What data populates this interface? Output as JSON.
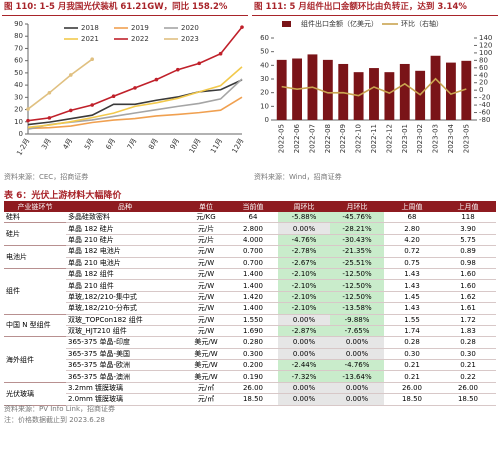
{
  "chart_data": [
    {
      "type": "line",
      "title": "图 110: 1-5 月我国光伏装机 61.21GW，同比 158.2%",
      "source": "资料来源：CEC，招商证券",
      "categories": [
        "1-2月",
        "3月",
        "4月",
        "5月",
        "6月",
        "7月",
        "8月",
        "9月",
        "10月",
        "11月",
        "12月"
      ],
      "series": [
        {
          "name": "2018",
          "color": "#3a3a3a",
          "values": [
            7.7,
            9.7,
            12.5,
            15.4,
            24.3,
            24.3,
            27.6,
            30.3,
            34.5,
            36.2,
            44.3
          ]
        },
        {
          "name": "2019",
          "color": "#f0a050",
          "values": [
            4.5,
            5.2,
            6.5,
            9.4,
            11.4,
            12.6,
            14.8,
            16.0,
            17.5,
            19.5,
            30.1
          ]
        },
        {
          "name": "2020",
          "color": "#a5a5a5",
          "values": [
            3.9,
            7.7,
            9.7,
            11.5,
            14.4,
            17.2,
            19.9,
            22.6,
            25.0,
            28.7,
            45.0
          ]
        },
        {
          "name": "2021",
          "color": "#f2c94c",
          "values": [
            5.5,
            7.3,
            10.1,
            13.4,
            17.1,
            22.6,
            25.5,
            29.2,
            34.5,
            39.6,
            54.9
          ]
        },
        {
          "name": "2022",
          "color": "#c0202a",
          "marker": true,
          "values": [
            10.9,
            13.2,
            19.3,
            23.7,
            30.9,
            37.7,
            44.5,
            52.6,
            57.8,
            65.7,
            87.4
          ]
        },
        {
          "name": "2023",
          "color": "#e0c080",
          "marker": true,
          "values": [
            20.4,
            33.7,
            48.3,
            61.2,
            null,
            null,
            null,
            null,
            null,
            null,
            null
          ]
        }
      ],
      "ylim": [
        0,
        90
      ],
      "yticks": [
        0,
        10,
        20,
        30,
        40,
        50,
        60,
        70,
        80,
        90
      ],
      "grid": false
    },
    {
      "type": "bar",
      "title": "图 111: 5 月组件出口金额环比由负转正，达到 3.14%",
      "source": "资料来源：Wind，招商证券",
      "categories": [
        "2022-05",
        "2022-06",
        "2022-07",
        "2022-08",
        "2022-09",
        "2022-10",
        "2022-11",
        "2022-12",
        "2023-01",
        "2023-02",
        "2023-03",
        "2023-04",
        "2023-05"
      ],
      "series": [
        {
          "name": "组件出口金额（亿美元）",
          "type": "bar",
          "color": "#7a1418",
          "values": [
            44,
            45,
            48,
            44,
            41,
            35,
            38,
            35,
            41,
            36,
            47,
            42,
            43.3
          ]
        },
        {
          "name": "环比（右轴）",
          "type": "line",
          "axis": "y2",
          "color": "#c9a450",
          "values": [
            9.5,
            2.7,
            8.1,
            -7.1,
            -6.8,
            -14.6,
            8.6,
            -7.9,
            17.1,
            -12.2,
            30.6,
            -10.6,
            3.14
          ]
        }
      ],
      "ylim": [
        0,
        60
      ],
      "yticks": [
        0,
        10,
        20,
        30,
        40,
        50,
        60
      ],
      "y2lim": [
        -80,
        140
      ],
      "y2ticks": [
        -80,
        -60,
        -40,
        -20,
        0,
        20,
        40,
        60,
        80,
        100,
        120,
        140
      ],
      "grid": false
    }
  ],
  "table": {
    "title": "表 6：光伏上游材料大幅降价",
    "columns": [
      "产业链环节",
      "品种",
      "单位",
      "当前值",
      "周环比",
      "月环比",
      "上周值",
      "上月值"
    ],
    "groups": [
      {
        "name": "硅料",
        "rows": [
          [
            "多晶硅致密料",
            "元/KG",
            "64",
            "-5.88%",
            "-45.76%",
            "68",
            "118"
          ]
        ]
      },
      {
        "name": "硅片",
        "rows": [
          [
            "单晶 182 硅片",
            "元/片",
            "2.800",
            "0.00%",
            "-28.21%",
            "2.80",
            "3.90"
          ],
          [
            "单晶 210 硅片",
            "元/片",
            "4.000",
            "-4.76%",
            "-30.43%",
            "4.20",
            "5.75"
          ]
        ]
      },
      {
        "name": "电池片",
        "rows": [
          [
            "单晶 182 电池片",
            "元/W",
            "0.700",
            "-2.78%",
            "-21.35%",
            "0.72",
            "0.89"
          ],
          [
            "单晶 210 电池片",
            "元/W",
            "0.700",
            "-2.67%",
            "-25.51%",
            "0.75",
            "0.98"
          ]
        ]
      },
      {
        "name": "组件",
        "rows": [
          [
            "单晶 182 组件",
            "元/W",
            "1.400",
            "-2.10%",
            "-12.50%",
            "1.43",
            "1.60"
          ],
          [
            "单晶 210 组件",
            "元/W",
            "1.400",
            "-2.10%",
            "-12.50%",
            "1.43",
            "1.60"
          ],
          [
            "单玻,182/210-集中式",
            "元/W",
            "1.420",
            "-2.10%",
            "-12.50%",
            "1.45",
            "1.62"
          ],
          [
            "单玻,182/210-分布式",
            "元/W",
            "1.400",
            "-2.10%",
            "-13.58%",
            "1.43",
            "1.61"
          ]
        ]
      },
      {
        "name": "中国 N 型组件",
        "rows": [
          [
            "双玻_TOPCon182 组件",
            "元/W",
            "1.550",
            "0.00%",
            "-9.88%",
            "1.55",
            "1.72"
          ],
          [
            "双玻_HJT210 组件",
            "元/W",
            "1.690",
            "-2.87%",
            "-7.65%",
            "1.74",
            "1.83"
          ]
        ]
      },
      {
        "name": "海外组件",
        "rows": [
          [
            "365-375 单晶-印度",
            "美元/W",
            "0.280",
            "0.00%",
            "0.00%",
            "0.28",
            "0.28"
          ],
          [
            "365-375 单晶-美国",
            "美元/W",
            "0.300",
            "0.00%",
            "0.00%",
            "0.30",
            "0.30"
          ],
          [
            "365-375 单晶-欧洲",
            "美元/W",
            "0.200",
            "-2.44%",
            "-4.76%",
            "0.21",
            "0.21"
          ],
          [
            "365-375 单晶-澳洲",
            "美元/W",
            "0.190",
            "-7.32%",
            "-13.64%",
            "0.21",
            "0.22"
          ]
        ]
      },
      {
        "name": "光伏玻璃",
        "rows": [
          [
            "3.2mm 镀膜玻璃",
            "元/㎡",
            "26.00",
            "0.00%",
            "0.00%",
            "26.00",
            "26.00"
          ],
          [
            "2.0mm 镀膜玻璃",
            "元/㎡",
            "18.50",
            "0.00%",
            "0.00%",
            "18.50",
            "18.50"
          ]
        ]
      }
    ],
    "source": "资料来源：PV Info Link，招商证券",
    "note": "注：价格数据截止到 2023.6.28"
  }
}
